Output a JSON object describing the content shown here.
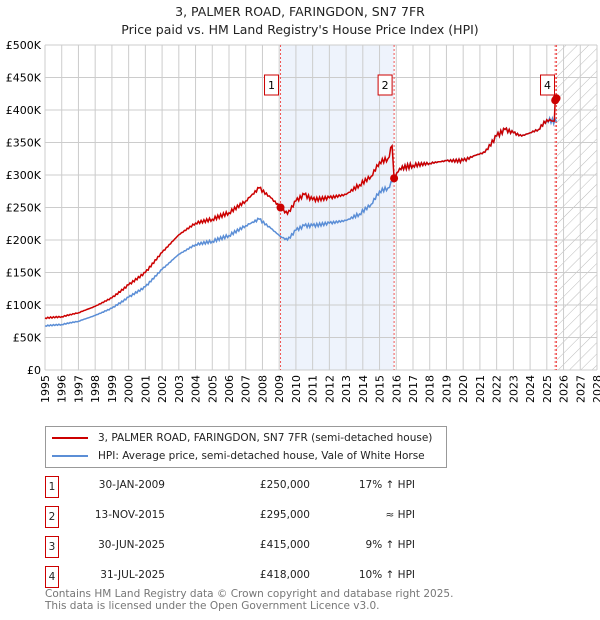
{
  "chart_data": {
    "type": "line",
    "title": "3, PALMER ROAD, FARINGDON, SN7 7FR",
    "subtitle": "Price paid vs. HM Land Registry's House Price Index (HPI)",
    "xlim": [
      1995,
      2028
    ],
    "ylim": [
      0,
      500000
    ],
    "x_ticks": [
      "1995",
      "1996",
      "1997",
      "1998",
      "1999",
      "2000",
      "2001",
      "2002",
      "2003",
      "2004",
      "2005",
      "2006",
      "2007",
      "2008",
      "2009",
      "2010",
      "2011",
      "2012",
      "2013",
      "2014",
      "2015",
      "2016",
      "2017",
      "2018",
      "2019",
      "2020",
      "2021",
      "2022",
      "2023",
      "2024",
      "2025",
      "2026",
      "2027",
      "2028"
    ],
    "y_ticks": [
      {
        "v": 0,
        "l": "£0"
      },
      {
        "v": 50000,
        "l": "£50K"
      },
      {
        "v": 100000,
        "l": "£100K"
      },
      {
        "v": 150000,
        "l": "£150K"
      },
      {
        "v": 200000,
        "l": "£200K"
      },
      {
        "v": 250000,
        "l": "£250K"
      },
      {
        "v": 300000,
        "l": "£300K"
      },
      {
        "v": 350000,
        "l": "£350K"
      },
      {
        "v": 400000,
        "l": "£400K"
      },
      {
        "v": 450000,
        "l": "£450K"
      },
      {
        "v": 500000,
        "l": "£500K"
      }
    ],
    "grid": true,
    "series": [
      {
        "name": "3, PALMER ROAD, FARINGDON, SN7 7FR (semi-detached house)",
        "color": "#cc0000",
        "points": [
          [
            1995,
            80
          ],
          [
            1996,
            82
          ],
          [
            1997,
            88
          ],
          [
            1998,
            98
          ],
          [
            1999,
            111
          ],
          [
            2000,
            131
          ],
          [
            2001,
            150
          ],
          [
            2002,
            181
          ],
          [
            2003,
            208
          ],
          [
            2004,
            226
          ],
          [
            2005,
            232
          ],
          [
            2006,
            242
          ],
          [
            2007,
            260
          ],
          [
            2007.8,
            280
          ],
          [
            2008.5,
            265
          ],
          [
            2009.08,
            250
          ],
          [
            2009.5,
            240
          ],
          [
            2010,
            260
          ],
          [
            2010.5,
            270
          ],
          [
            2011,
            262
          ],
          [
            2012,
            265
          ],
          [
            2013,
            270
          ],
          [
            2013.8,
            285
          ],
          [
            2014.5,
            298
          ],
          [
            2015,
            320
          ],
          [
            2015.5,
            325
          ],
          [
            2015.75,
            345
          ],
          [
            2015.87,
            295
          ],
          [
            2016.2,
            310
          ],
          [
            2017,
            315
          ],
          [
            2018,
            318
          ],
          [
            2019,
            322
          ],
          [
            2020,
            322
          ],
          [
            2020.7,
            330
          ],
          [
            2021.3,
            335
          ],
          [
            2022,
            360
          ],
          [
            2022.5,
            370
          ],
          [
            2023,
            365
          ],
          [
            2023.5,
            360
          ],
          [
            2024,
            365
          ],
          [
            2024.5,
            370
          ],
          [
            2025,
            385
          ],
          [
            2025.45,
            383
          ],
          [
            2025.5,
            415
          ],
          [
            2025.58,
            418
          ]
        ]
      },
      {
        "name": "HPI: Average price, semi-detached house, Vale of White Horse",
        "color": "#5b8ed6",
        "points": [
          [
            1995,
            68
          ],
          [
            1996,
            70
          ],
          [
            1997,
            75
          ],
          [
            1998,
            84
          ],
          [
            1999,
            95
          ],
          [
            2000,
            112
          ],
          [
            2001,
            128
          ],
          [
            2002,
            155
          ],
          [
            2003,
            178
          ],
          [
            2004,
            193
          ],
          [
            2005,
            198
          ],
          [
            2006,
            207
          ],
          [
            2007,
            222
          ],
          [
            2007.8,
            232
          ],
          [
            2008.5,
            218
          ],
          [
            2009.1,
            205
          ],
          [
            2009.5,
            200
          ],
          [
            2010,
            215
          ],
          [
            2010.5,
            222
          ],
          [
            2011,
            222
          ],
          [
            2012,
            226
          ],
          [
            2013,
            230
          ],
          [
            2013.8,
            240
          ],
          [
            2014.5,
            255
          ],
          [
            2015,
            275
          ],
          [
            2015.5,
            280
          ],
          [
            2015.87,
            295
          ],
          [
            2016.2,
            310
          ],
          [
            2017,
            315
          ],
          [
            2018,
            318
          ],
          [
            2019,
            322
          ],
          [
            2020,
            322
          ],
          [
            2020.7,
            330
          ],
          [
            2021.3,
            335
          ],
          [
            2022,
            360
          ],
          [
            2022.5,
            370
          ],
          [
            2023,
            365
          ],
          [
            2023.5,
            360
          ],
          [
            2024,
            365
          ],
          [
            2024.5,
            370
          ],
          [
            2025,
            385
          ],
          [
            2025.58,
            382
          ]
        ]
      }
    ],
    "sales": [
      {
        "n": "1",
        "x": 2009.08,
        "y": 250000,
        "show_label": true
      },
      {
        "n": "2",
        "x": 2015.87,
        "y": 295000,
        "show_label": true
      },
      {
        "n": "3",
        "x": 2025.5,
        "y": 415000,
        "show_label": false
      },
      {
        "n": "4",
        "x": 2025.58,
        "y": 418000,
        "show_label": true
      }
    ],
    "shaded_range": [
      2009.08,
      2015.87
    ],
    "forecast_hatch_from": 2025.58
  },
  "legend": {
    "red": "3, PALMER ROAD, FARINGDON, SN7 7FR (semi-detached house)",
    "blue": "HPI: Average price, semi-detached house, Vale of White Horse"
  },
  "table": [
    {
      "n": "1",
      "date": "30-JAN-2009",
      "price": "£250,000",
      "hpi": "17% ↑ HPI"
    },
    {
      "n": "2",
      "date": "13-NOV-2015",
      "price": "£295,000",
      "hpi": "≈ HPI"
    },
    {
      "n": "3",
      "date": "30-JUN-2025",
      "price": "£415,000",
      "hpi": "9% ↑ HPI"
    },
    {
      "n": "4",
      "date": "31-JUL-2025",
      "price": "£418,000",
      "hpi": "10% ↑ HPI"
    }
  ],
  "footer": {
    "line1": "Contains HM Land Registry data © Crown copyright and database right 2025.",
    "line2": "This data is licensed under the Open Government Licence v3.0."
  }
}
